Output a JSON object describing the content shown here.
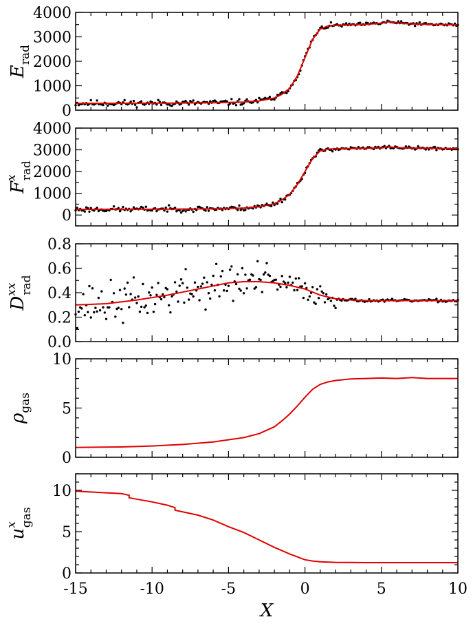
{
  "chart_data": [
    {
      "type": "line",
      "id": "e-rad",
      "ylabel": {
        "main": "E",
        "sub": "rad",
        "sup": ""
      },
      "xlim": [
        -15,
        10
      ],
      "ylim": [
        0,
        4000
      ],
      "yticks": [
        0,
        1000,
        2000,
        3000,
        4000
      ],
      "yticklabels": [
        "0",
        "1000",
        "2000",
        "3000",
        "4000"
      ],
      "yminor": 500,
      "show_xticklabels": false,
      "scatter": {
        "noise_left": 90,
        "noise_right": 50,
        "seed": 11
      },
      "series": [
        {
          "type": "line",
          "color": "#e00000",
          "x": [
            -15,
            -12,
            -9,
            -6,
            -4,
            -3,
            -2,
            -1.5,
            -1,
            -0.5,
            0,
            0.5,
            1,
            1.5,
            2,
            3,
            4,
            5,
            5.5,
            6,
            7,
            8,
            9,
            10
          ],
          "y": [
            280,
            285,
            290,
            300,
            330,
            380,
            500,
            650,
            900,
            1400,
            2150,
            2900,
            3320,
            3440,
            3470,
            3490,
            3510,
            3560,
            3620,
            3570,
            3530,
            3510,
            3500,
            3490
          ]
        }
      ]
    },
    {
      "type": "line",
      "id": "f-rad",
      "ylabel": {
        "main": "F",
        "sub": "rad",
        "sup": "x"
      },
      "xlim": [
        -15,
        10
      ],
      "ylim": [
        -500,
        4000
      ],
      "yticks": [
        0,
        1000,
        2000,
        3000,
        4000
      ],
      "yticklabels": [
        "0",
        "1000",
        "2000",
        "3000",
        "4000"
      ],
      "yminor": 500,
      "show_xticklabels": false,
      "scatter": {
        "noise_left": 90,
        "noise_right": 50,
        "seed": 23
      },
      "series": [
        {
          "type": "line",
          "color": "#e00000",
          "x": [
            -15,
            -12,
            -9,
            -6,
            -4,
            -3,
            -2,
            -1.5,
            -1,
            -0.5,
            0,
            0.5,
            1,
            1.5,
            2,
            3,
            4,
            5,
            5.5,
            6,
            7,
            8,
            9,
            10
          ],
          "y": [
            260,
            265,
            270,
            285,
            320,
            380,
            520,
            700,
            950,
            1400,
            2000,
            2600,
            2950,
            3030,
            3050,
            3060,
            3070,
            3090,
            3140,
            3100,
            3080,
            3070,
            3060,
            3050
          ]
        }
      ]
    },
    {
      "type": "line",
      "id": "d-rad",
      "ylabel": {
        "main": "D",
        "sub": "rad",
        "sup": "xx"
      },
      "xlim": [
        -15,
        10
      ],
      "ylim": [
        0,
        0.8
      ],
      "yticks": [
        0,
        0.2,
        0.4,
        0.6,
        0.8
      ],
      "yticklabels": [
        "0.0",
        "0.2",
        "0.4",
        "0.6",
        "0.8"
      ],
      "yminor": 0.1,
      "show_xticklabels": false,
      "scatter": {
        "noise_left": 0.12,
        "noise_right": 0.008,
        "seed": 37
      },
      "series": [
        {
          "type": "line",
          "color": "#e00000",
          "x": [
            -15,
            -13,
            -11,
            -9,
            -7,
            -5,
            -4,
            -3,
            -2,
            -1,
            0,
            1,
            2,
            3,
            4,
            6,
            8,
            10
          ],
          "y": [
            0.3,
            0.31,
            0.34,
            0.38,
            0.43,
            0.48,
            0.49,
            0.49,
            0.48,
            0.46,
            0.43,
            0.38,
            0.35,
            0.34,
            0.335,
            0.335,
            0.335,
            0.335
          ]
        }
      ]
    },
    {
      "type": "line",
      "id": "rho-gas",
      "ylabel": {
        "main": "ρ",
        "sub": "gas",
        "sup": ""
      },
      "xlim": [
        -15,
        10
      ],
      "ylim": [
        0,
        10
      ],
      "yticks": [
        0,
        5,
        10
      ],
      "yticklabels": [
        "0",
        "5",
        "10"
      ],
      "yminor": 1,
      "show_xticklabels": false,
      "series": [
        {
          "type": "line",
          "color": "#e00000",
          "x": [
            -15,
            -12,
            -10,
            -8,
            -6,
            -4,
            -3,
            -2,
            -1.5,
            -1,
            -0.5,
            0,
            0.5,
            1,
            1.5,
            2,
            3,
            4,
            5,
            6,
            7,
            8,
            9,
            10
          ],
          "y": [
            1.0,
            1.05,
            1.15,
            1.3,
            1.55,
            2.0,
            2.4,
            3.1,
            3.7,
            4.4,
            5.2,
            6.1,
            6.9,
            7.4,
            7.65,
            7.8,
            7.95,
            8.0,
            8.05,
            8.0,
            8.1,
            8.0,
            8.0,
            8.0
          ]
        }
      ]
    },
    {
      "type": "line",
      "id": "u-gas",
      "ylabel": {
        "main": "u",
        "sub": "gas",
        "sup": "x"
      },
      "xlim": [
        -15,
        10
      ],
      "ylim": [
        0,
        12
      ],
      "yticks": [
        0,
        5,
        10
      ],
      "yticklabels": [
        "0",
        "5",
        "10"
      ],
      "yminor": 1,
      "show_xticklabels": true,
      "xlabel": "X",
      "xticks": [
        -15,
        -10,
        -5,
        0,
        5,
        10
      ],
      "xticklabels": [
        "-15",
        "-10",
        "-5",
        "0",
        "5",
        "10"
      ],
      "series": [
        {
          "type": "line",
          "color": "#e00000",
          "x": [
            -15,
            -13,
            -12,
            -11.5,
            -11.5,
            -10,
            -9,
            -8.5,
            -8.5,
            -7,
            -6,
            -5,
            -4,
            -3,
            -2,
            -1,
            0,
            0.5,
            1,
            2,
            4,
            6,
            8,
            10
          ],
          "y": [
            9.9,
            9.7,
            9.6,
            9.4,
            9.1,
            8.6,
            8.2,
            7.9,
            7.6,
            7.0,
            6.4,
            5.6,
            4.9,
            4.0,
            3.1,
            2.3,
            1.6,
            1.45,
            1.35,
            1.28,
            1.25,
            1.25,
            1.25,
            1.25
          ]
        }
      ]
    }
  ]
}
